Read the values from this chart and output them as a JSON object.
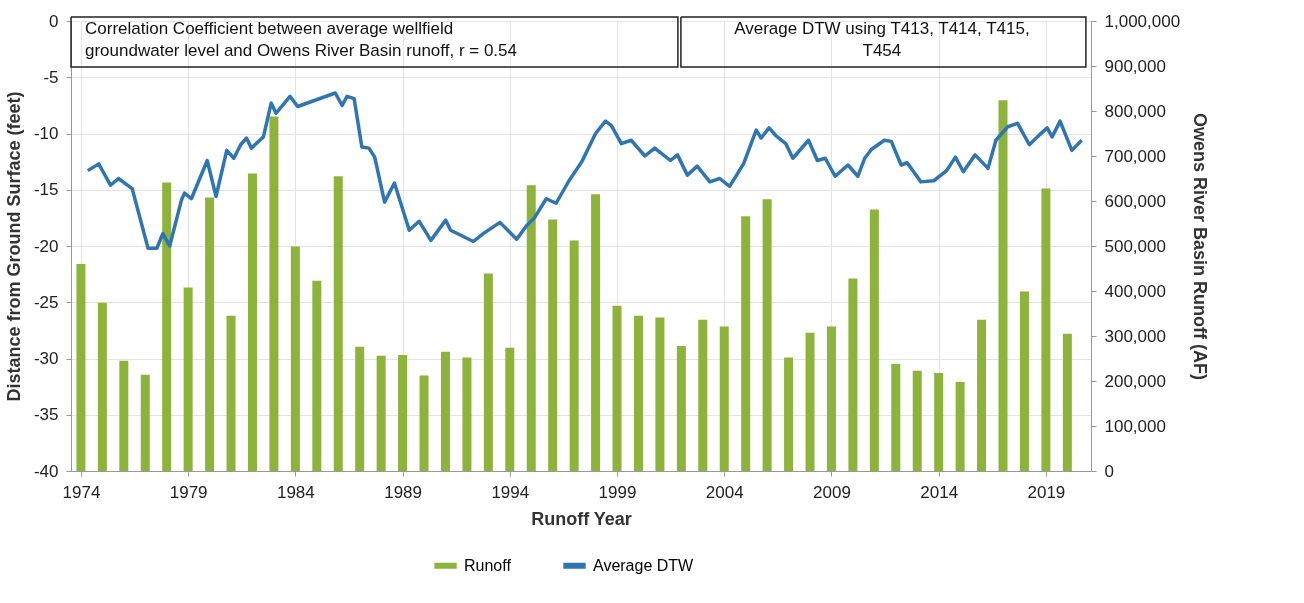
{
  "chart_data": {
    "type": "bar",
    "xlabel": "Runoff Year",
    "ylabel": "Distance from Ground Surface (feet)",
    "y2label": "Owens River Basin Runoff (AF)",
    "annotations": [
      "Correlation Coefficient between average wellfield groundwater level and Owens River Basin runoff,  r = 0.54",
      "Average DTW using T413, T414, T415, T454"
    ],
    "xlim": [
      1973.77,
      2020.87
    ],
    "xticks": [
      1974,
      1979,
      1984,
      1989,
      1994,
      1999,
      2004,
      2009,
      2014,
      2019
    ],
    "ylim": [
      -40,
      0
    ],
    "yticks": [
      -40,
      -35,
      -30,
      -25,
      -20,
      -15,
      -10,
      -5,
      0
    ],
    "y2lim": [
      0,
      1000000
    ],
    "y2ticks": [
      {
        "value": 0,
        "label": "0"
      },
      {
        "value": 100000,
        "label": "100,000"
      },
      {
        "value": 200000,
        "label": "200,000"
      },
      {
        "value": 300000,
        "label": "300,000"
      },
      {
        "value": 400000,
        "label": "400,000"
      },
      {
        "value": 500000,
        "label": "500,000"
      },
      {
        "value": 600000,
        "label": "600,000"
      },
      {
        "value": 700000,
        "label": "700,000"
      },
      {
        "value": 800000,
        "label": "800,000"
      },
      {
        "value": 900000,
        "label": "900,000"
      },
      {
        "value": 1000000,
        "label": "1,000,000"
      }
    ],
    "grid": true,
    "legend": "bottom",
    "series": [
      {
        "name": "Runoff",
        "axis": "y2",
        "color": "#8db33a",
        "x": [
          1974,
          1975,
          1976,
          1977,
          1978,
          1979,
          1980,
          1981,
          1982,
          1983,
          1984,
          1985,
          1986,
          1987,
          1988,
          1989,
          1990,
          1991,
          1992,
          1993,
          1994,
          1995,
          1996,
          1997,
          1998,
          1999,
          2000,
          2001,
          2002,
          2003,
          2004,
          2005,
          2006,
          2007,
          2008,
          2009,
          2010,
          2011,
          2012,
          2013,
          2014,
          2015,
          2016,
          2017,
          2018,
          2019,
          2020
        ],
        "values": [
          460000,
          374000,
          245000,
          214000,
          641000,
          408000,
          608000,
          345000,
          661000,
          788000,
          499000,
          423000,
          655000,
          276000,
          256000,
          258000,
          212000,
          265000,
          252000,
          439000,
          274000,
          635000,
          559000,
          512000,
          615000,
          367000,
          345000,
          341000,
          278000,
          336000,
          321000,
          566000,
          604000,
          252000,
          307000,
          321000,
          428000,
          581000,
          238000,
          223000,
          218000,
          198000,
          336000,
          824000,
          399000,
          628000,
          305000
        ]
      },
      {
        "name": "Average DTW",
        "type": "line",
        "axis": "y",
        "color": "#2e75b6",
        "x": [
          1974.32,
          1974.83,
          1975.38,
          1975.75,
          1976.39,
          1977.13,
          1977.54,
          1977.82,
          1978.14,
          1978.69,
          1978.83,
          1979.15,
          1979.89,
          1980.3,
          1980.8,
          1981.13,
          1981.45,
          1981.72,
          1981.95,
          1982.51,
          1982.87,
          1983.1,
          1983.75,
          1984.11,
          1985.86,
          1986.18,
          1986.41,
          1986.74,
          1987.1,
          1987.43,
          1987.7,
          1988.16,
          1988.62,
          1989.31,
          1989.77,
          1990.32,
          1991.01,
          1991.24,
          1992.3,
          1992.76,
          1993.54,
          1994.32,
          1994.78,
          1995.15,
          1995.7,
          1996.16,
          1996.76,
          1997.36,
          1998.0,
          1998.46,
          1998.74,
          1999.2,
          1999.66,
          2000.3,
          2000.76,
          2001.49,
          2001.82,
          2002.28,
          2002.74,
          2003.33,
          2003.79,
          2004.25,
          2004.9,
          2005.49,
          2005.72,
          2006.09,
          2006.41,
          2006.87,
          2007.2,
          2007.93,
          2008.34,
          2008.71,
          2009.17,
          2009.77,
          2010.23,
          2010.55,
          2010.87,
          2011.47,
          2011.79,
          2012.25,
          2012.53,
          2013.17,
          2013.77,
          2014.37,
          2014.78,
          2015.15,
          2015.7,
          2016.3,
          2016.67,
          2017.22,
          2017.68,
          2018.23,
          2018.6,
          2019.06,
          2019.29,
          2019.66,
          2020.21,
          2020.67
        ],
        "values": [
          -13.3,
          -12.7,
          -14.6,
          -14.0,
          -14.9,
          -20.2,
          -20.2,
          -18.9,
          -20.0,
          -15.9,
          -15.3,
          -15.8,
          -12.4,
          -15.6,
          -11.5,
          -12.2,
          -11.0,
          -10.4,
          -11.3,
          -10.3,
          -7.3,
          -8.2,
          -6.7,
          -7.6,
          -6.4,
          -7.5,
          -6.7,
          -6.9,
          -11.2,
          -11.3,
          -12.1,
          -16.1,
          -14.4,
          -18.6,
          -17.8,
          -19.5,
          -17.7,
          -18.6,
          -19.6,
          -18.9,
          -17.9,
          -19.4,
          -18.2,
          -17.5,
          -15.8,
          -16.2,
          -14.2,
          -12.5,
          -10.0,
          -8.9,
          -9.3,
          -10.9,
          -10.6,
          -12.0,
          -11.3,
          -12.4,
          -11.9,
          -13.7,
          -12.9,
          -14.3,
          -14.0,
          -14.7,
          -12.7,
          -9.7,
          -10.4,
          -9.5,
          -10.2,
          -10.9,
          -12.2,
          -10.6,
          -12.4,
          -12.2,
          -13.8,
          -12.8,
          -13.8,
          -12.2,
          -11.4,
          -10.6,
          -10.7,
          -12.8,
          -12.6,
          -14.3,
          -14.2,
          -13.3,
          -12.1,
          -13.4,
          -11.9,
          -13.1,
          -10.6,
          -9.4,
          -9.1,
          -11.0,
          -10.3,
          -9.5,
          -10.3,
          -8.9,
          -11.5,
          -10.6
        ]
      }
    ]
  }
}
